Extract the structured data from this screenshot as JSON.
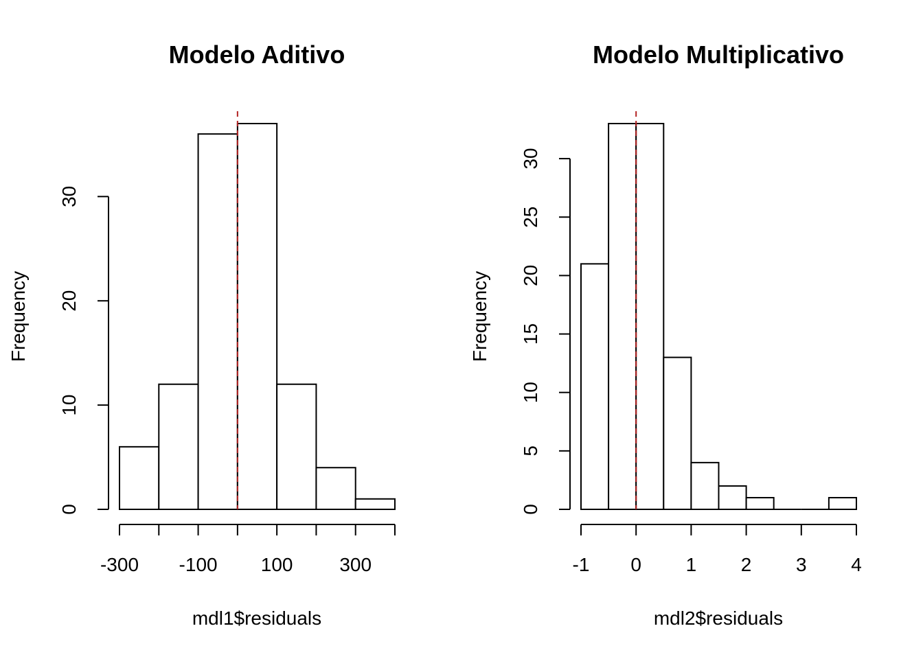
{
  "chart_data": [
    {
      "type": "bar",
      "title": "Modelo Aditivo",
      "xlabel": "mdl1$residuals",
      "ylabel": "Frequency",
      "bin_edges": [
        -300,
        -200,
        -100,
        0,
        100,
        200,
        300,
        400
      ],
      "values": [
        6,
        12,
        36,
        37,
        12,
        4,
        1
      ],
      "xlim": [
        -300,
        400
      ],
      "ylim": [
        0,
        37
      ],
      "x_ticks": [
        -300,
        -200,
        -100,
        0,
        100,
        200,
        300,
        400
      ],
      "x_tick_labels": [
        "-300",
        "",
        "-100",
        "",
        "100",
        "",
        "300",
        ""
      ],
      "y_ticks": [
        0,
        10,
        20,
        30
      ],
      "y_tick_labels": [
        "0",
        "10",
        "20",
        "30"
      ],
      "reference_line": {
        "x": 0,
        "color": "#b22222",
        "style": "dashed"
      },
      "grid": false,
      "bar_fill": "#ffffff",
      "bar_stroke": "#000000"
    },
    {
      "type": "bar",
      "title": "Modelo Multiplicativo",
      "xlabel": "mdl2$residuals",
      "ylabel": "Frequency",
      "bin_edges": [
        -1,
        -0.5,
        0,
        0.5,
        1,
        1.5,
        2,
        2.5,
        3,
        3.5,
        4
      ],
      "values": [
        21,
        33,
        33,
        13,
        4,
        2,
        1,
        0,
        0,
        1
      ],
      "xlim": [
        -1,
        4
      ],
      "ylim": [
        0,
        33
      ],
      "x_ticks": [
        -1,
        0,
        1,
        2,
        3,
        4
      ],
      "x_tick_labels": [
        "-1",
        "0",
        "1",
        "2",
        "3",
        "4"
      ],
      "y_ticks": [
        0,
        5,
        10,
        15,
        20,
        25,
        30
      ],
      "y_tick_labels": [
        "0",
        "5",
        "10",
        "15",
        "20",
        "25",
        "30"
      ],
      "reference_line": {
        "x": 0,
        "color": "#b22222",
        "style": "dashed"
      },
      "grid": false,
      "bar_fill": "#ffffff",
      "bar_stroke": "#000000"
    }
  ]
}
